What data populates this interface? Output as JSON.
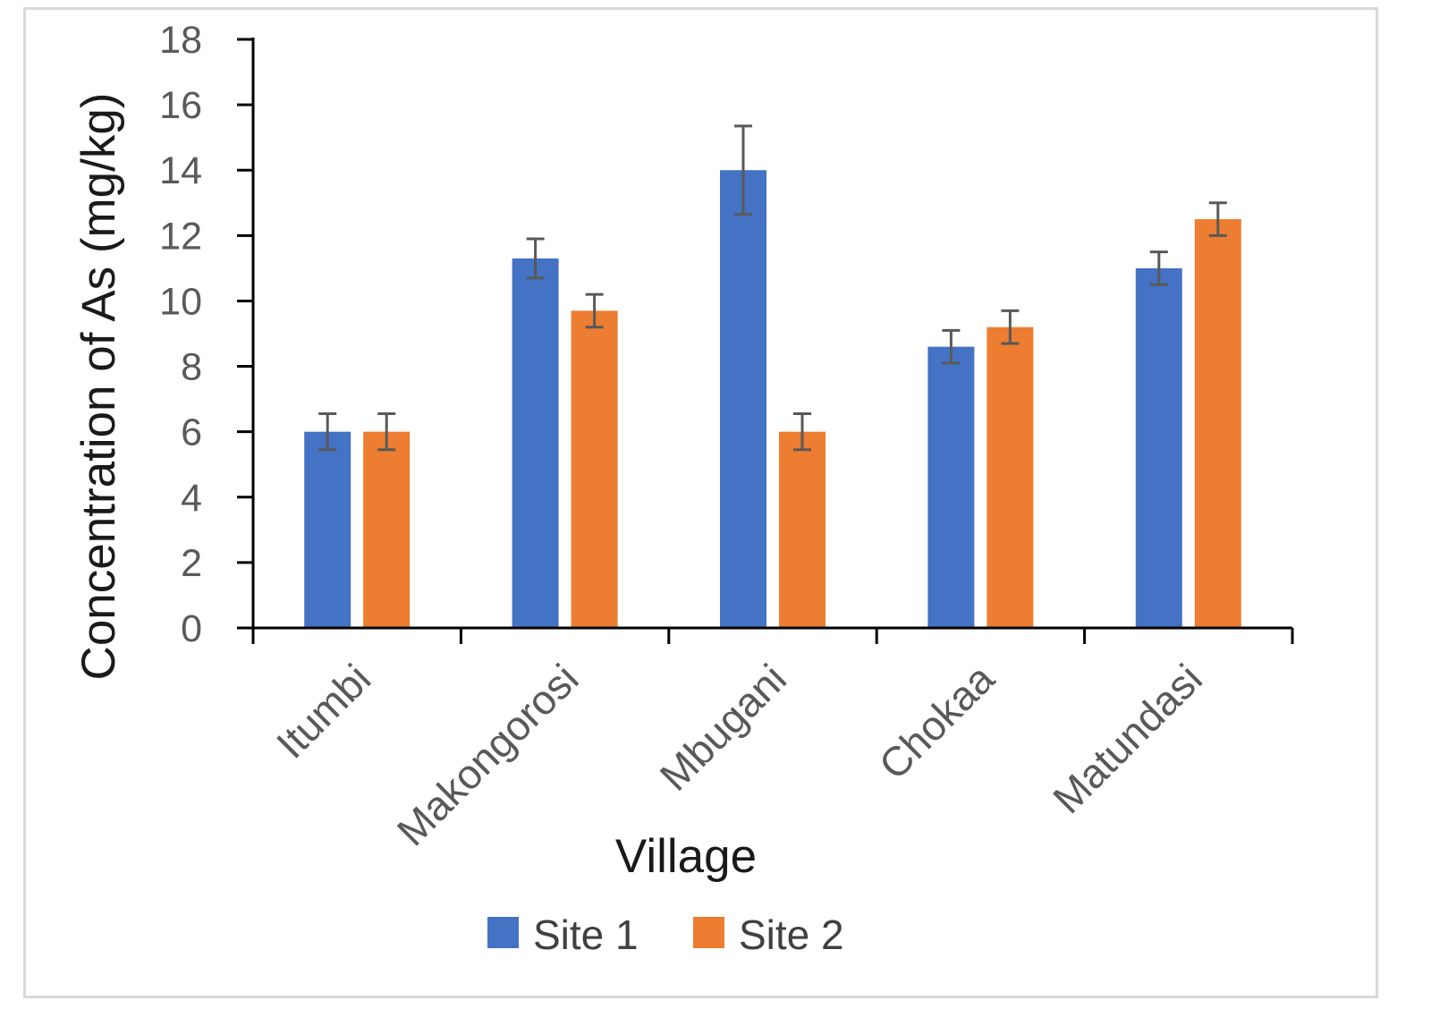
{
  "chart_data": {
    "type": "bar",
    "title": "",
    "xlabel": "Village",
    "ylabel": "Concentration of As (mg/kg)",
    "ylim": [
      0,
      18
    ],
    "yticks": [
      0,
      2,
      4,
      6,
      8,
      10,
      12,
      14,
      16,
      18
    ],
    "categories": [
      "Itumbi",
      "Makongorosi",
      "Mbugani",
      "Chokaa",
      "Matundasi"
    ],
    "series": [
      {
        "name": "Site 1",
        "color": "#4472C4",
        "values": [
          6.0,
          11.3,
          14.0,
          8.6,
          11.0
        ],
        "errors": [
          0.55,
          0.6,
          1.35,
          0.5,
          0.5
        ]
      },
      {
        "name": "Site 2",
        "color": "#ED7D31",
        "values": [
          6.0,
          9.7,
          6.0,
          9.2,
          12.5
        ],
        "errors": [
          0.55,
          0.5,
          0.55,
          0.5,
          0.5
        ]
      }
    ],
    "legend": {
      "position": "bottom",
      "entries": [
        "Site 1",
        "Site 2"
      ]
    },
    "grid": false,
    "error_bar_color": "#595959"
  }
}
